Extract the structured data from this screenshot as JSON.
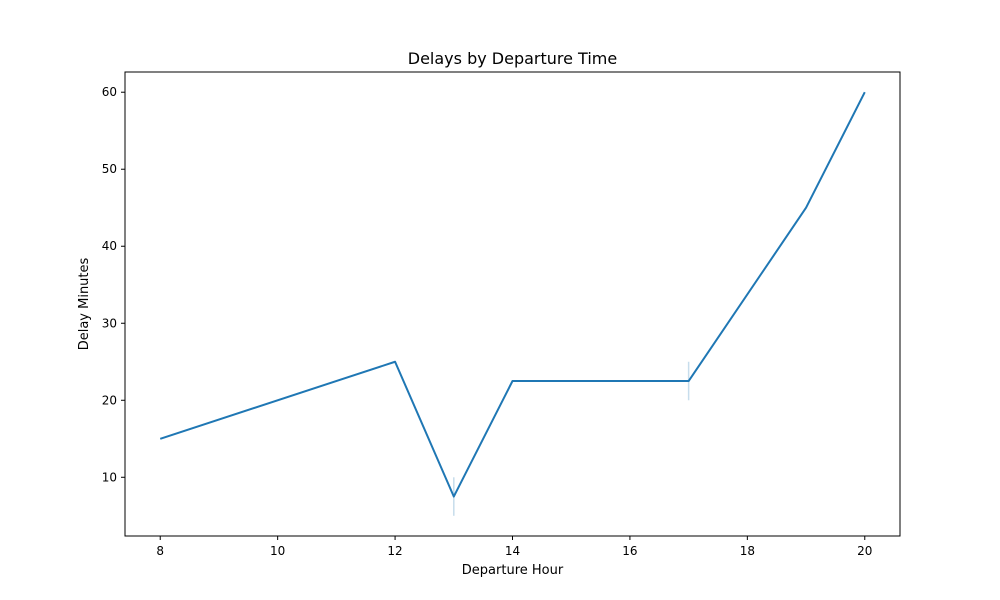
{
  "chart_data": {
    "type": "line",
    "title": "Delays by Departure Time",
    "xlabel": "Departure Hour",
    "ylabel": "Delay Minutes",
    "xlim": [
      7.4,
      20.6
    ],
    "ylim": [
      2.375,
      62.625
    ],
    "xticks": [
      8,
      10,
      12,
      14,
      16,
      18,
      20
    ],
    "yticks": [
      10,
      20,
      30,
      40,
      50,
      60
    ],
    "grid": false,
    "legend": "none",
    "series": [
      {
        "color": "#1f77b4",
        "x": [
          8,
          12,
          13,
          14,
          17,
          19,
          20
        ],
        "y": [
          15,
          25,
          7.5,
          22.5,
          22.5,
          45,
          60
        ],
        "error_bands": [
          {
            "x": 13,
            "low": 5,
            "high": 10
          },
          {
            "x": 17,
            "low": 20,
            "high": 25
          }
        ]
      }
    ]
  }
}
